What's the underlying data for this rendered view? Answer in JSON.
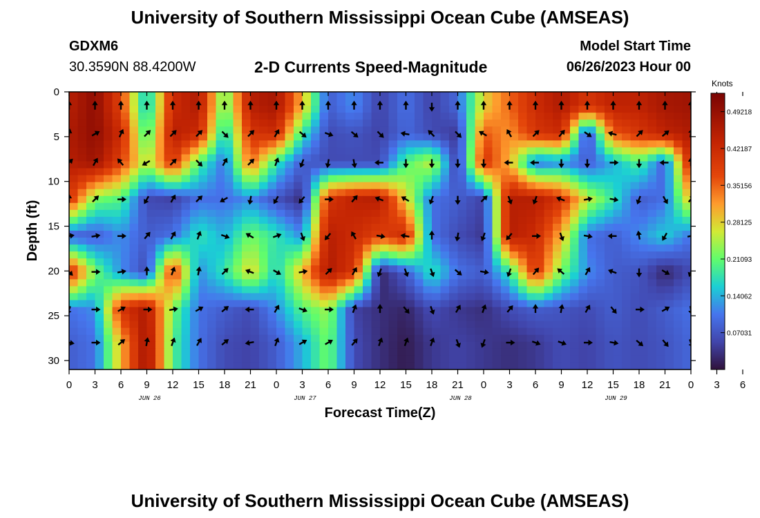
{
  "header": {
    "title": "University of Southern Mississippi Ocean Cube (AMSEAS)",
    "station_id": "GDXM6",
    "coordinates": "30.3590N  88.4200W",
    "plot_title": "2-D Currents Speed-Magnitude",
    "model_start_label": "Model Start Time",
    "model_start_value": "06/26/2023 Hour 00"
  },
  "footer": {
    "title": "University of Southern Mississippi Ocean Cube (AMSEAS)"
  },
  "colors": {
    "arrow": "#000000",
    "frame": "#000000"
  },
  "chart_data": {
    "type": "heatmap",
    "title": "2-D Currents Speed-Magnitude",
    "xlabel": "Forecast Time(Z)",
    "ylabel": "Depth (ft)",
    "xlim": [
      0,
      72
    ],
    "ylim": [
      0,
      31
    ],
    "x_tick_labels": [
      "0",
      "3",
      "6",
      "9",
      "12",
      "15",
      "18",
      "21",
      "0",
      "3",
      "6",
      "9",
      "12",
      "15",
      "18",
      "21",
      "0",
      "3",
      "6",
      "9",
      "12",
      "15",
      "18",
      "21",
      "0",
      "3",
      "6",
      "9",
      "12",
      "15",
      "18",
      "21",
      "0"
    ],
    "date_labels": [
      {
        "label": "JUN 26",
        "hour": 9
      },
      {
        "label": "JUN 27",
        "hour": 27
      },
      {
        "label": "JUN 28",
        "hour": 45
      },
      {
        "label": "JUN 29",
        "hour": 63
      }
    ],
    "y_ticks": [
      0,
      5,
      10,
      15,
      20,
      25,
      30
    ],
    "colorbar": {
      "unit": "Knots",
      "range": [
        0,
        0.5273
      ],
      "tick_values": [
        0.49218,
        0.42187,
        0.35156,
        0.28125,
        0.21093,
        0.14062,
        0.07031
      ],
      "tick_labels": [
        "0.49218",
        "0.42187",
        "0.35156",
        "0.28125",
        "0.21093",
        "0.14062",
        "0.07031"
      ]
    },
    "grid": {
      "depth_levels": [
        1.6,
        4.7,
        7.9,
        12.0,
        16.1,
        20.1,
        24.3,
        28.0
      ],
      "time_step_hours": 3,
      "speed_knots": [
        [
          0.45,
          0.5,
          0.38,
          0.14,
          0.42,
          0.46,
          0.2,
          0.45,
          0.47,
          0.3,
          0.08,
          0.12,
          0.05,
          0.1,
          0.05,
          0.09,
          0.28,
          0.35,
          0.42,
          0.46,
          0.4,
          0.44,
          0.44,
          0.47,
          0.48
        ],
        [
          0.46,
          0.5,
          0.42,
          0.18,
          0.45,
          0.42,
          0.15,
          0.4,
          0.42,
          0.18,
          0.06,
          0.07,
          0.05,
          0.09,
          0.06,
          0.04,
          0.36,
          0.32,
          0.4,
          0.42,
          0.05,
          0.36,
          0.4,
          0.44,
          0.46
        ],
        [
          0.45,
          0.48,
          0.38,
          0.24,
          0.4,
          0.2,
          0.1,
          0.35,
          0.18,
          0.08,
          0.06,
          0.06,
          0.06,
          0.2,
          0.26,
          0.04,
          0.4,
          0.3,
          0.1,
          0.12,
          0.08,
          0.14,
          0.2,
          0.08,
          0.44
        ],
        [
          0.4,
          0.22,
          0.2,
          0.06,
          0.05,
          0.1,
          0.1,
          0.12,
          0.07,
          0.03,
          0.4,
          0.44,
          0.45,
          0.28,
          0.1,
          0.08,
          0.05,
          0.45,
          0.45,
          0.4,
          0.26,
          0.18,
          0.08,
          0.1,
          0.3
        ],
        [
          0.08,
          0.08,
          0.12,
          0.08,
          0.1,
          0.18,
          0.14,
          0.22,
          0.18,
          0.12,
          0.45,
          0.42,
          0.38,
          0.42,
          0.1,
          0.06,
          0.04,
          0.45,
          0.42,
          0.3,
          0.1,
          0.08,
          0.12,
          0.16,
          0.1
        ],
        [
          0.42,
          0.22,
          0.12,
          0.06,
          0.4,
          0.12,
          0.18,
          0.28,
          0.16,
          0.3,
          0.46,
          0.4,
          0.02,
          0.08,
          0.18,
          0.1,
          0.08,
          0.18,
          0.4,
          0.22,
          0.12,
          0.08,
          0.07,
          0.02,
          0.06
        ],
        [
          0.1,
          0.12,
          0.4,
          0.46,
          0.22,
          0.1,
          0.08,
          0.06,
          0.12,
          0.2,
          0.24,
          0.05,
          0.03,
          0.02,
          0.06,
          0.04,
          0.03,
          0.06,
          0.08,
          0.07,
          0.06,
          0.08,
          0.06,
          0.08,
          0.1
        ],
        [
          0.08,
          0.1,
          0.3,
          0.48,
          0.2,
          0.1,
          0.06,
          0.05,
          0.08,
          0.14,
          0.22,
          0.06,
          0.03,
          0.01,
          0.04,
          0.05,
          0.04,
          0.03,
          0.04,
          0.06,
          0.05,
          0.07,
          0.06,
          0.07,
          0.09
        ]
      ],
      "direction_deg": [
        [
          0,
          0,
          0,
          0,
          0,
          0,
          0,
          0,
          0,
          0,
          0,
          0,
          0,
          0,
          180,
          0,
          0,
          0,
          0,
          0,
          0,
          0,
          0,
          0,
          0
        ],
        [
          10,
          60,
          25,
          45,
          45,
          45,
          135,
          45,
          30,
          130,
          110,
          130,
          135,
          280,
          315,
          135,
          300,
          330,
          45,
          40,
          125,
          285,
          45,
          50,
          10
        ],
        [
          45,
          30,
          320,
          240,
          45,
          135,
          30,
          45,
          20,
          200,
          190,
          170,
          270,
          180,
          180,
          180,
          180,
          270,
          270,
          180,
          180,
          90,
          180,
          270,
          0
        ],
        [
          0,
          45,
          90,
          210,
          30,
          45,
          240,
          190,
          210,
          220,
          90,
          40,
          290,
          300,
          200,
          180,
          45,
          160,
          200,
          290,
          80,
          100,
          200,
          150,
          40
        ],
        [
          80,
          80,
          90,
          40,
          30,
          20,
          110,
          300,
          70,
          160,
          220,
          330,
          100,
          280,
          0,
          190,
          200,
          220,
          90,
          160,
          100,
          270,
          350,
          210,
          80
        ],
        [
          135,
          90,
          80,
          0,
          20,
          10,
          45,
          290,
          120,
          80,
          45,
          30,
          200,
          160,
          160,
          130,
          100,
          200,
          40,
          310,
          30,
          290,
          180,
          120,
          200
        ],
        [
          200,
          90,
          60,
          90,
          80,
          60,
          50,
          270,
          30,
          110,
          90,
          20,
          0,
          140,
          160,
          30,
          20,
          40,
          0,
          10,
          30,
          140,
          90,
          60,
          170
        ],
        [
          100,
          90,
          50,
          10,
          20,
          30,
          50,
          260,
          20,
          60,
          60,
          40,
          20,
          20,
          20,
          160,
          200,
          90,
          110,
          110,
          90,
          100,
          130,
          140,
          160
        ]
      ]
    }
  }
}
